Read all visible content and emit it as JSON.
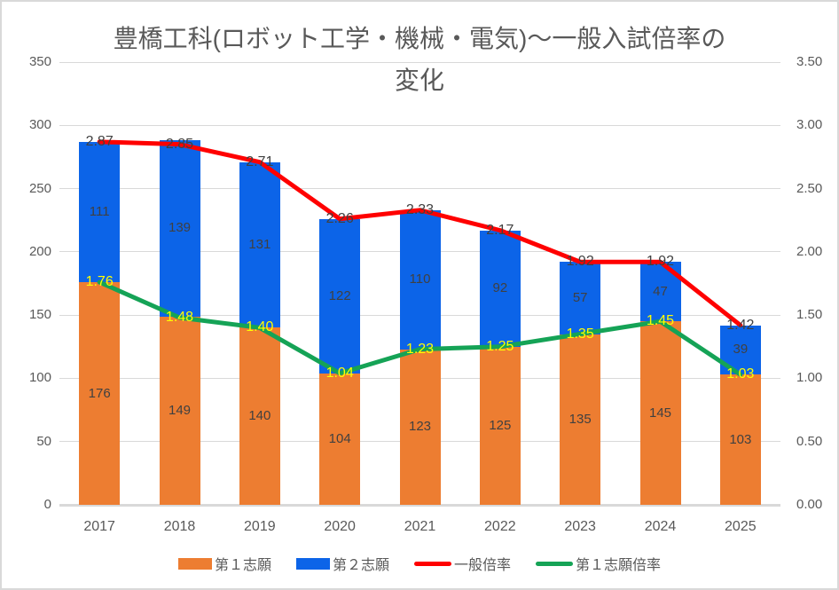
{
  "chart_data": {
    "type": "combo-stacked-bar-line",
    "title": "豊橋工科(ロボット工学・機械・電気)～一般入試倍率の変化",
    "title_lines": [
      "豊橋工科(ロボット工学・機械・電気)～一般入試倍率の",
      "変化"
    ],
    "categories": [
      "2017",
      "2018",
      "2019",
      "2020",
      "2021",
      "2022",
      "2023",
      "2024",
      "2025"
    ],
    "series": [
      {
        "name": "第１志願",
        "type": "bar",
        "axis": "left",
        "color": "#ED7D31",
        "values": [
          176,
          149,
          140,
          104,
          123,
          125,
          135,
          145,
          103
        ],
        "data_labels": [
          "176",
          "149",
          "140",
          "104",
          "123",
          "125",
          "135",
          "145",
          "103"
        ],
        "label_color": "#404040"
      },
      {
        "name": "第２志願",
        "type": "bar",
        "axis": "left",
        "color": "#0C64E8",
        "values": [
          111,
          139,
          131,
          122,
          110,
          92,
          57,
          47,
          39
        ],
        "data_labels": [
          "111",
          "139",
          "131",
          "122",
          "110",
          "92",
          "57",
          "47",
          "39"
        ],
        "label_color": "#404040"
      },
      {
        "name": "一般倍率",
        "type": "line",
        "axis": "right",
        "color": "#FF0000",
        "values": [
          2.87,
          2.85,
          2.71,
          2.26,
          2.33,
          2.17,
          1.92,
          1.92,
          1.42
        ],
        "data_labels": [
          "2.87",
          "2.85",
          "2.71",
          "2.26",
          "2.33",
          "2.17",
          "1.92",
          "1.92",
          "1.42"
        ],
        "label_color": "#404040"
      },
      {
        "name": "第１志願倍率",
        "type": "line",
        "axis": "right",
        "color": "#15A356",
        "values": [
          1.76,
          1.48,
          1.4,
          1.04,
          1.23,
          1.25,
          1.35,
          1.45,
          1.03
        ],
        "data_labels": [
          "1.76",
          "1.48",
          "1.40",
          "1.04",
          "1.23",
          "1.25",
          "1.35",
          "1.45",
          "1.03"
        ],
        "label_color": "#FFFF00"
      }
    ],
    "axes": {
      "left": {
        "min": 0,
        "max": 350,
        "step": 50,
        "tick_labels": [
          "350",
          "300",
          "250",
          "200",
          "150",
          "100",
          "50",
          "0"
        ]
      },
      "right": {
        "min": 0,
        "max": 3.5,
        "step": 0.5,
        "tick_labels": [
          "3.50",
          "3.00",
          "2.50",
          "2.00",
          "1.50",
          "1.00",
          "0.50",
          "0.00"
        ]
      }
    },
    "grid": true,
    "legend_position": "bottom",
    "colors": {
      "grid": "#D9D9D9",
      "axis_text": "#595959",
      "title_text": "#595959"
    }
  }
}
